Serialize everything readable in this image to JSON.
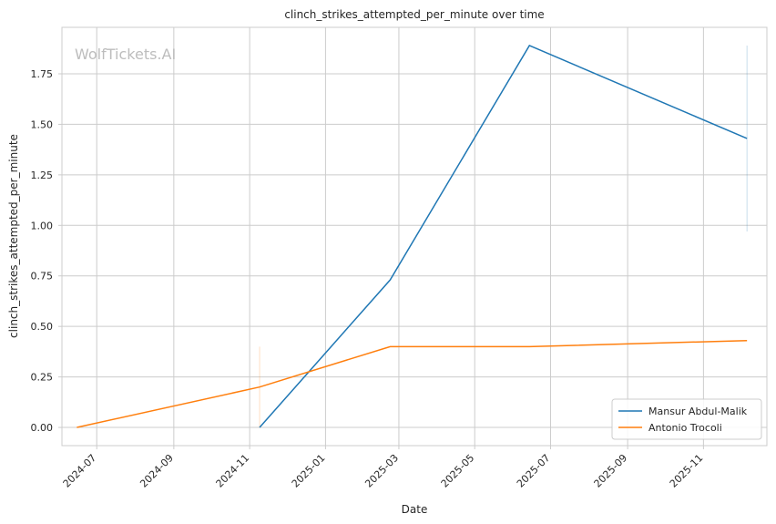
{
  "chart_data": {
    "type": "line",
    "title": "clinch_strikes_attempted_per_minute over time",
    "xlabel": "Date",
    "ylabel": "clinch_strikes_attempted_per_minute",
    "watermark": "WolfTickets.AI",
    "grid": true,
    "legend_position": "bottom-right",
    "x_tick_labels": [
      "2024-07",
      "2024-09",
      "2024-11",
      "2025-01",
      "2025-03",
      "2025-05",
      "2025-07",
      "2025-09",
      "2025-11"
    ],
    "y_ticks": [
      0.0,
      0.25,
      0.5,
      0.75,
      1.0,
      1.25,
      1.5,
      1.75
    ],
    "y_tick_labels": [
      "0.00",
      "0.25",
      "0.50",
      "0.75",
      "1.00",
      "1.25",
      "1.50",
      "1.75"
    ],
    "xlim": [
      "2024-06-03",
      "2025-12-22"
    ],
    "ylim": [
      -0.09,
      1.98
    ],
    "series": [
      {
        "name": "Mansur Abdul-Malik",
        "color": "#1f77b4",
        "points": [
          {
            "x": "2024-11-09",
            "y": 0.0
          },
          {
            "x": "2025-02-22",
            "y": 0.73
          },
          {
            "x": "2025-06-14",
            "y": 1.89
          },
          {
            "x": "2025-12-06",
            "y": 1.43
          }
        ],
        "band": {
          "x": "2025-12-06",
          "low": 0.97,
          "high": 1.89
        }
      },
      {
        "name": "Antonio Trocoli",
        "color": "#ff7f0e",
        "points": [
          {
            "x": "2024-06-15",
            "y": 0.0
          },
          {
            "x": "2024-11-09",
            "y": 0.2
          },
          {
            "x": "2025-02-22",
            "y": 0.4
          },
          {
            "x": "2025-06-14",
            "y": 0.4
          },
          {
            "x": "2025-12-06",
            "y": 0.43
          }
        ],
        "band": {
          "x": "2024-11-09",
          "low": 0.0,
          "high": 0.4
        }
      }
    ]
  }
}
